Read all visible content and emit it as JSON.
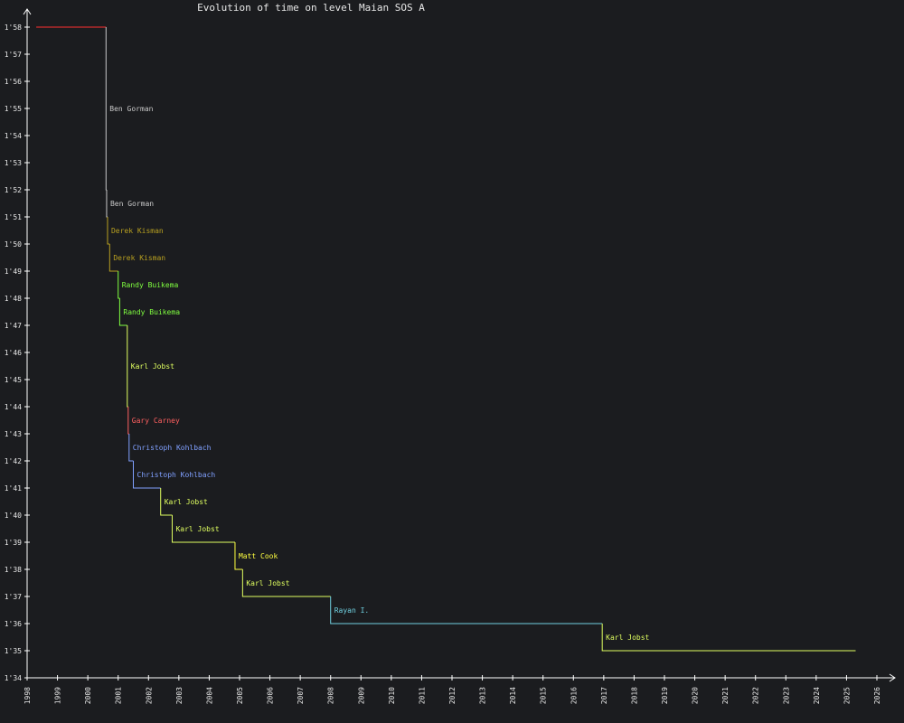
{
  "title": "Evolution of time on level Maian SOS A",
  "colors": {
    "background": "#1b1c1f",
    "axis": "#ffffff",
    "text": "#e8e8e8",
    "initial": "#ff3030",
    "ben_gorman": "#c8c8c8",
    "derek_kisman": "#b8a020",
    "randy_buikema": "#80ff40",
    "karl_jobst": "#e0ff60",
    "gary_carney": "#ff6060",
    "christoph_kohlbach": "#80a0ff",
    "matt_cook": "#ffff40",
    "rayan_i": "#70d0e0"
  },
  "chart_data": {
    "type": "line",
    "step": true,
    "title": "Evolution of time on level Maian SOS A",
    "xlabel": "",
    "ylabel": "",
    "xlim": [
      1998.0,
      2026.0
    ],
    "ylim": [
      94,
      118
    ],
    "x_ticks": [
      "1998",
      "1999",
      "2000",
      "2001",
      "2002",
      "2003",
      "2004",
      "2005",
      "2006",
      "2007",
      "2008",
      "2009",
      "2010",
      "2011",
      "2012",
      "2013",
      "2014",
      "2015",
      "2016",
      "2017",
      "2018",
      "2019",
      "2020",
      "2021",
      "2022",
      "2023",
      "2024",
      "2025",
      "2026"
    ],
    "y_ticks": [
      "1'58",
      "1'57",
      "1'56",
      "1'55",
      "1'54",
      "1'53",
      "1'52",
      "1'51",
      "1'50",
      "1'49",
      "1'48",
      "1'47",
      "1'46",
      "1'45",
      "1'44",
      "1'43",
      "1'42",
      "1'41",
      "1'40",
      "1'39",
      "1'38",
      "1'37",
      "1'36",
      "1'35",
      "1'34"
    ],
    "records": [
      {
        "holder": "",
        "date": 1998.3,
        "time": 118,
        "color_key": "initial",
        "label": ""
      },
      {
        "holder": "Ben Gorman",
        "date": 2000.6,
        "time": 112,
        "color_key": "ben_gorman",
        "label": "Ben Gorman"
      },
      {
        "holder": "Ben Gorman",
        "date": 2000.62,
        "time": 111,
        "color_key": "ben_gorman",
        "label": "Ben Gorman"
      },
      {
        "holder": "Derek Kisman",
        "date": 2000.65,
        "time": 110,
        "color_key": "derek_kisman",
        "label": "Derek Kisman"
      },
      {
        "holder": "Derek Kisman",
        "date": 2000.72,
        "time": 109,
        "color_key": "derek_kisman",
        "label": "Derek Kisman"
      },
      {
        "holder": "Randy Buikema",
        "date": 2001.0,
        "time": 108,
        "color_key": "randy_buikema",
        "label": "Randy Buikema"
      },
      {
        "holder": "Randy Buikema",
        "date": 2001.05,
        "time": 107,
        "color_key": "randy_buikema",
        "label": "Randy Buikema"
      },
      {
        "holder": "Karl Jobst",
        "date": 2001.3,
        "time": 104,
        "color_key": "karl_jobst",
        "label": "Karl Jobst"
      },
      {
        "holder": "Gary Carney",
        "date": 2001.33,
        "time": 103,
        "color_key": "gary_carney",
        "label": "Gary Carney"
      },
      {
        "holder": "Christoph Kohlbach",
        "date": 2001.36,
        "time": 102,
        "color_key": "christoph_kohlbach",
        "label": "Christoph Kohlbach"
      },
      {
        "holder": "Christoph Kohlbach",
        "date": 2001.5,
        "time": 101,
        "color_key": "christoph_kohlbach",
        "label": "Christoph Kohlbach"
      },
      {
        "holder": "Karl Jobst",
        "date": 2002.4,
        "time": 100,
        "color_key": "karl_jobst",
        "label": "Karl Jobst"
      },
      {
        "holder": "Karl Jobst",
        "date": 2002.78,
        "time": 99,
        "color_key": "karl_jobst",
        "label": "Karl Jobst"
      },
      {
        "holder": "Matt Cook",
        "date": 2004.85,
        "time": 98,
        "color_key": "matt_cook",
        "label": "Matt Cook"
      },
      {
        "holder": "Karl Jobst",
        "date": 2005.1,
        "time": 97,
        "color_key": "karl_jobst",
        "label": "Karl Jobst"
      },
      {
        "holder": "Rayan I.",
        "date": 2008.0,
        "time": 96,
        "color_key": "rayan_i",
        "label": "Rayan I."
      },
      {
        "holder": "Karl Jobst",
        "date": 2016.95,
        "time": 95,
        "color_key": "karl_jobst",
        "label": "Karl Jobst"
      }
    ],
    "end_date": 2025.3,
    "grid": false,
    "legend": "none"
  }
}
